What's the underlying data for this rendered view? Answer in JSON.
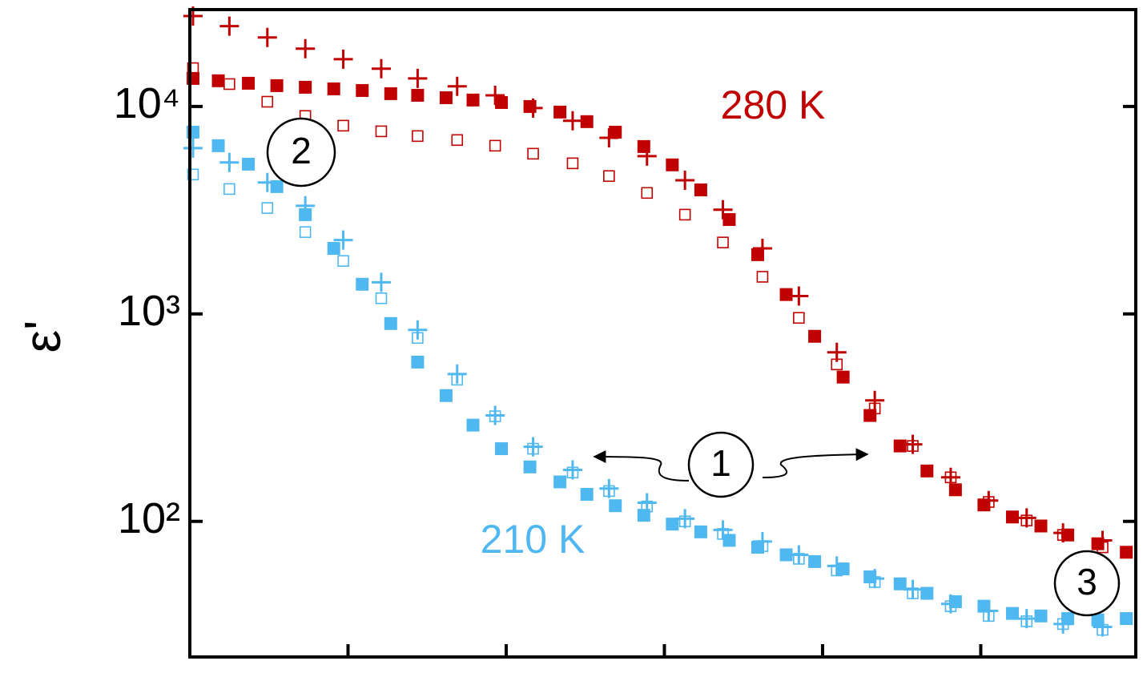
{
  "chart_data": {
    "type": "scatter",
    "y_label": "ε'",
    "log_y": true,
    "xlim": [
      0,
      5.98
    ],
    "xticks": [
      1,
      2,
      3,
      4,
      5
    ],
    "ylim": [
      22.2,
      29300
    ],
    "yticks": [
      {
        "value": 100,
        "label": "10²"
      },
      {
        "value": 1000,
        "label": "10³"
      },
      {
        "value": 10000,
        "label": "10⁴"
      }
    ],
    "annotations": [
      {
        "text": "280 K",
        "color": "#c00000"
      },
      {
        "text": "210 K",
        "color": "#4fb8f0"
      },
      {
        "text": "1"
      },
      {
        "text": "2"
      },
      {
        "text": "3"
      }
    ],
    "series": [
      {
        "color": "#c00000",
        "marker": "filled-square",
        "x": [
          0.02,
          0.18,
          0.37,
          0.55,
          0.73,
          0.91,
          1.09,
          1.27,
          1.44,
          1.62,
          1.79,
          1.97,
          2.15,
          2.34,
          2.51,
          2.69,
          2.87,
          3.05,
          3.23,
          3.41,
          3.59,
          3.77,
          3.95,
          4.13,
          4.3,
          4.49,
          4.66,
          4.84,
          5.02,
          5.2,
          5.38,
          5.55,
          5.74,
          5.92
        ],
        "values": [
          13650,
          13300,
          12940,
          12600,
          12380,
          12160,
          11940,
          11530,
          11320,
          11020,
          10740,
          10450,
          10000,
          9400,
          8450,
          7520,
          6410,
          5230,
          3960,
          2850,
          1930,
          1240,
          780,
          496,
          324,
          231,
          175,
          142,
          120,
          105,
          95,
          86,
          78,
          71
        ]
      },
      {
        "color": "#c00000",
        "marker": "open-square",
        "x": [
          0.02,
          0.25,
          0.49,
          0.73,
          0.97,
          1.21,
          1.44,
          1.69,
          1.93,
          2.17,
          2.42,
          2.65,
          2.89,
          3.13,
          3.37,
          3.62,
          3.85,
          4.09,
          4.33,
          4.57,
          4.81,
          5.05,
          5.29,
          5.52,
          5.77
        ],
        "values": [
          15300,
          12820,
          10540,
          9000,
          8080,
          7590,
          7200,
          6890,
          6470,
          5920,
          5320,
          4620,
          3830,
          3010,
          2210,
          1510,
          957,
          571,
          350,
          231,
          163,
          124,
          101,
          86,
          75
        ]
      },
      {
        "color": "#c00000",
        "marker": "plus",
        "x": [
          0.02,
          0.25,
          0.49,
          0.73,
          0.97,
          1.21,
          1.44,
          1.69,
          1.93,
          2.17,
          2.42,
          2.65,
          2.89,
          3.13,
          3.37,
          3.62,
          3.85,
          4.09,
          4.33,
          4.57,
          4.81,
          5.05,
          5.29,
          5.52,
          5.77
        ],
        "values": [
          27300,
          24400,
          21500,
          19000,
          16900,
          15200,
          13650,
          12500,
          11320,
          9820,
          8530,
          7060,
          5760,
          4410,
          3180,
          2070,
          1220,
          653,
          383,
          235,
          163,
          126,
          104,
          88,
          81
        ]
      },
      {
        "color": "#4fb8f0",
        "marker": "filled-square",
        "x": [
          0.02,
          0.18,
          0.37,
          0.55,
          0.73,
          0.91,
          1.09,
          1.27,
          1.44,
          1.62,
          1.79,
          1.97,
          2.15,
          2.34,
          2.51,
          2.69,
          2.87,
          3.05,
          3.23,
          3.41,
          3.59,
          3.77,
          3.95,
          4.13,
          4.3,
          4.49,
          4.66,
          4.84,
          5.02,
          5.2,
          5.38,
          5.55,
          5.74,
          5.92
        ],
        "values": [
          7520,
          6470,
          5270,
          4110,
          3010,
          2070,
          1390,
          899,
          586,
          404,
          291,
          224,
          183,
          155,
          135,
          119,
          107,
          97,
          89,
          81,
          75,
          69,
          64,
          59,
          54,
          50,
          45,
          41,
          39,
          36,
          35,
          34,
          33.5,
          34
        ]
      },
      {
        "color": "#4fb8f0",
        "marker": "open-square",
        "x": [
          0.02,
          0.25,
          0.49,
          0.73,
          0.97,
          1.21,
          1.44,
          1.69,
          1.93,
          2.17,
          2.42,
          2.65,
          2.89,
          3.13,
          3.37,
          3.62,
          3.85,
          4.09,
          4.33,
          4.57,
          4.81,
          5.05,
          5.29,
          5.52,
          5.77
        ],
        "values": [
          4700,
          4000,
          3240,
          2480,
          1800,
          1190,
          766,
          482,
          321,
          224,
          172,
          140,
          118,
          100,
          87,
          76,
          66,
          58,
          51,
          45,
          39,
          35,
          33,
          32,
          30
        ]
      },
      {
        "color": "#4fb8f0",
        "marker": "plus",
        "x": [
          0.02,
          0.25,
          0.49,
          0.73,
          0.97,
          1.21,
          1.44,
          1.69,
          1.93,
          2.17,
          2.42,
          2.65,
          2.89,
          3.13,
          3.37,
          3.62,
          3.85,
          4.09,
          4.33,
          4.57,
          4.81,
          5.05,
          5.29,
          5.52,
          5.77
        ],
        "values": [
          6300,
          5370,
          4300,
          3320,
          2270,
          1420,
          838,
          513,
          324,
          229,
          177,
          144,
          123,
          103,
          91,
          80,
          69,
          61,
          53,
          47,
          40,
          37,
          34,
          32,
          31
        ]
      }
    ]
  }
}
